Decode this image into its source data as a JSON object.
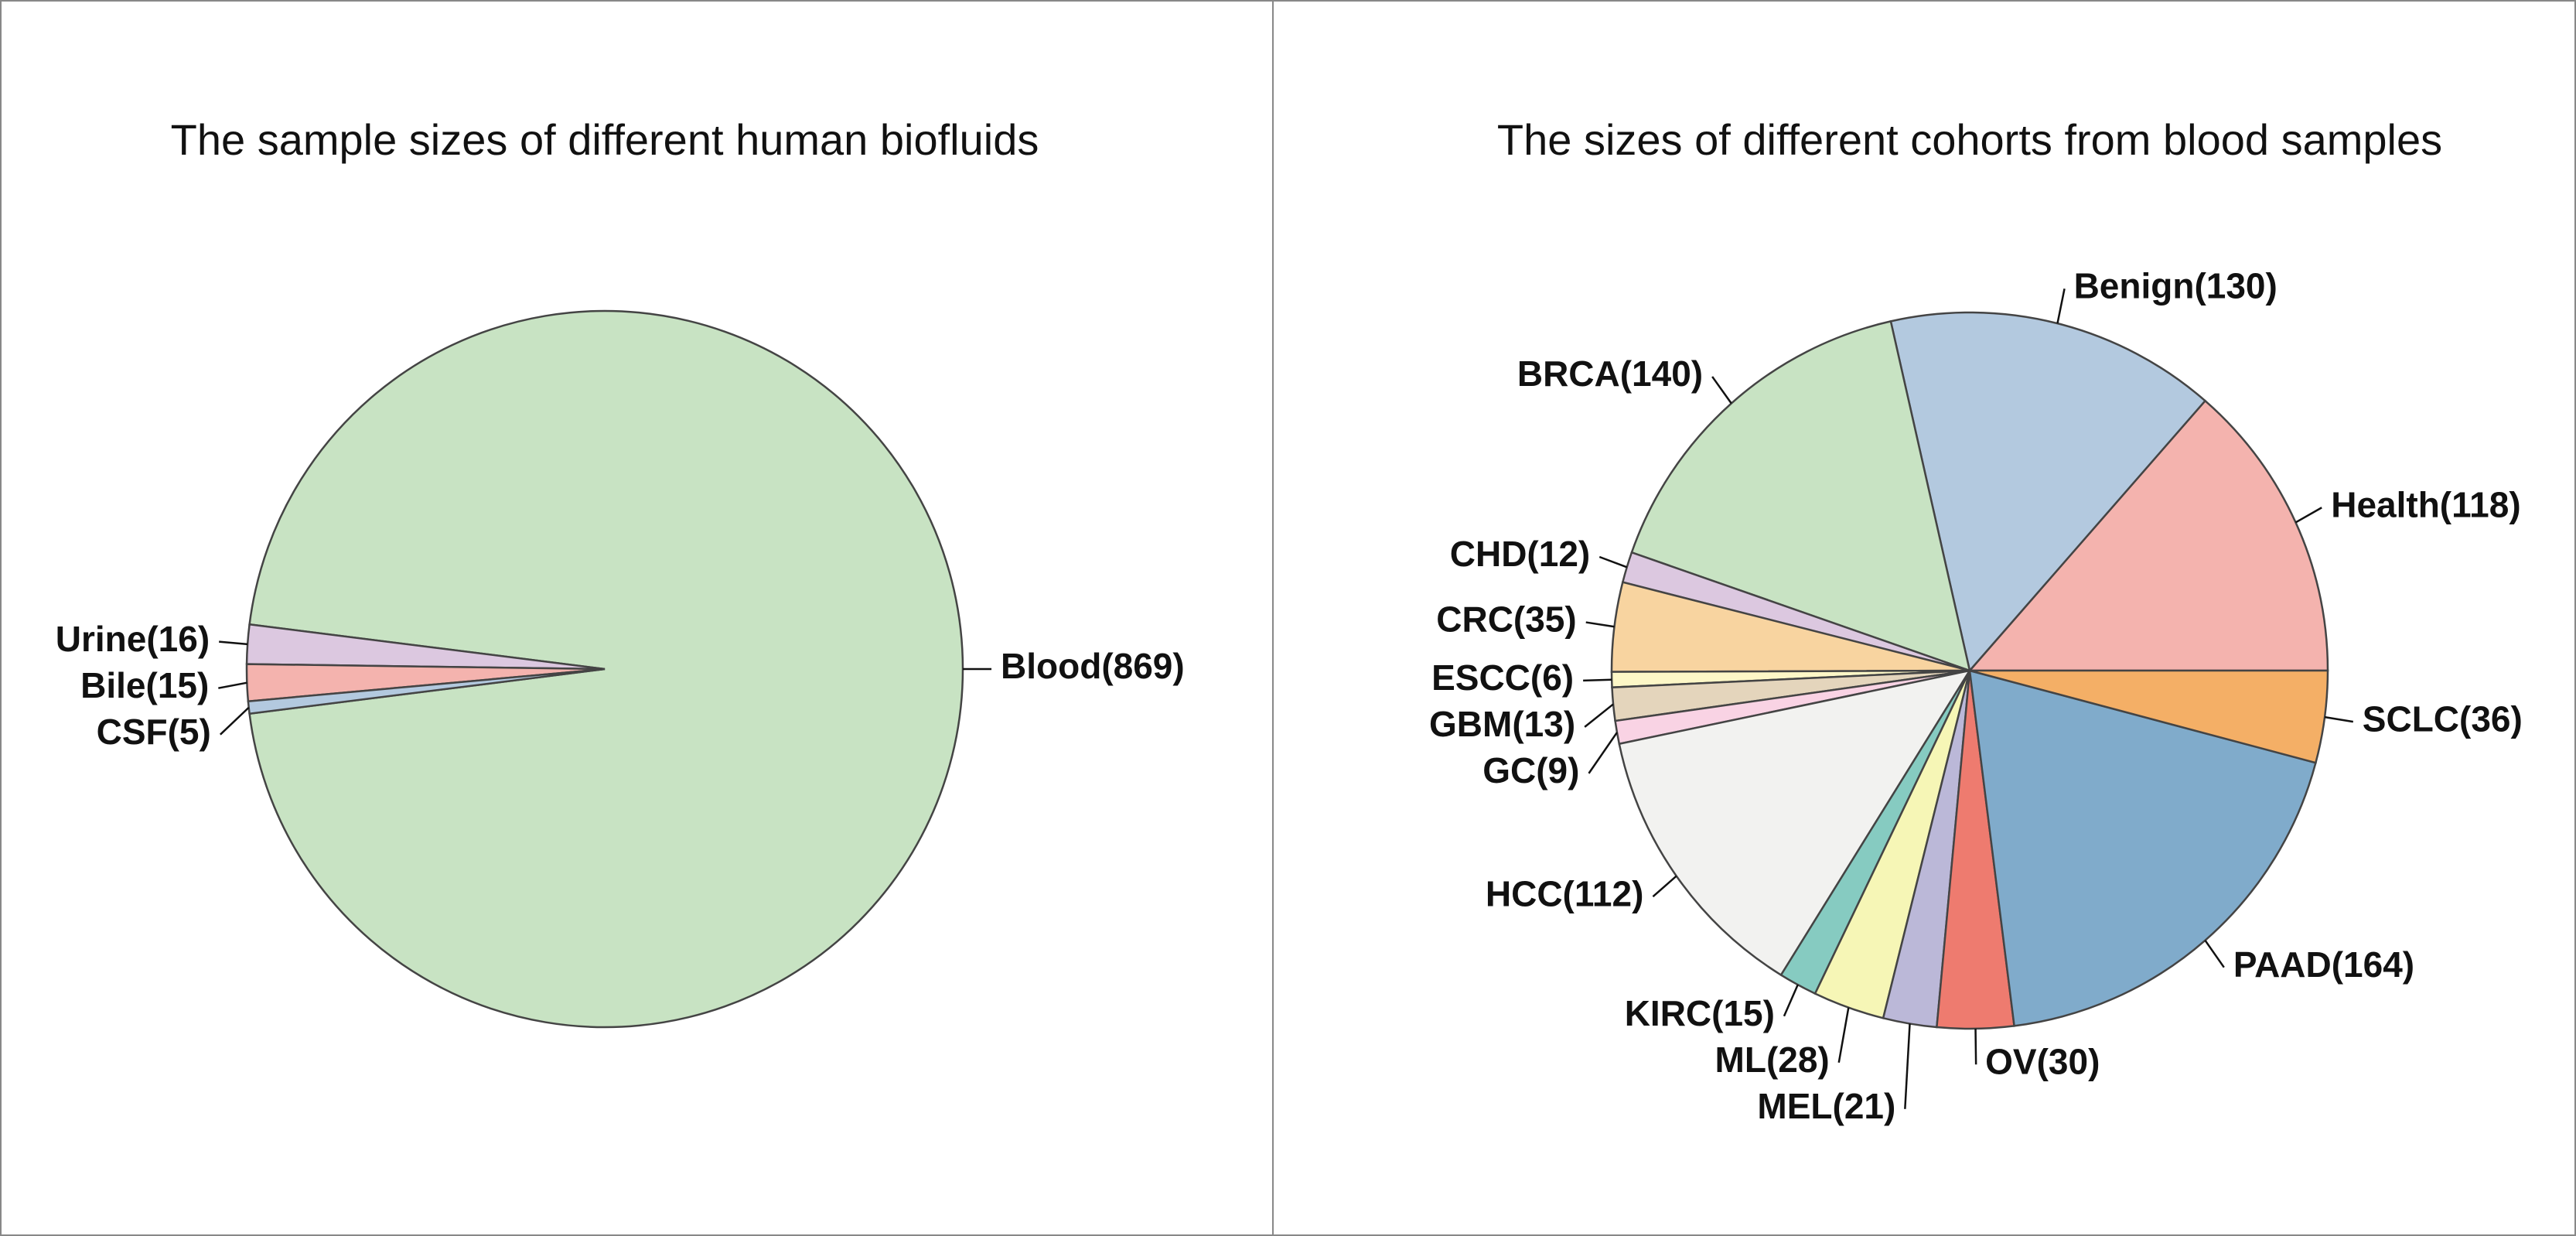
{
  "chart_data": [
    {
      "type": "pie",
      "title": "The sample sizes of different human biofluids",
      "values": [
        869,
        16,
        15,
        5
      ],
      "value_labels": [
        "Blood(869)",
        "Urine(16)",
        "Bile(15)",
        "CSF(5)"
      ],
      "colors": [
        "#c8e3c3",
        "#dcc8e0",
        "#f4b3ae",
        "#b3c9df"
      ]
    },
    {
      "type": "pie",
      "title": "The sizes of different cohorts from blood samples",
      "values": [
        118,
        130,
        140,
        12,
        35,
        6,
        13,
        9,
        112,
        15,
        28,
        21,
        30,
        164,
        36
      ],
      "value_labels": [
        "Health(118)",
        "Benign(130)",
        "BRCA(140)",
        "CHD(12)",
        "CRC(35)",
        "ESCC(6)",
        "GBM(13)",
        "GC(9)",
        "HCC(112)",
        "KIRC(15)",
        "ML(28)",
        "MEL(21)",
        "OV(30)",
        "PAAD(164)",
        "SCLC(36)"
      ],
      "colors": [
        "#f4b3ae",
        "#b3c9df",
        "#c8e3c3",
        "#dcc8e0",
        "#f8d4a0",
        "#fdf7c7",
        "#e4d5bc",
        "#f9d3e4",
        "#f2f2f0",
        "#86cbc1",
        "#f6f6b6",
        "#bbb8d8",
        "#ee7b6f",
        "#80abcb",
        "#f4af66"
      ]
    }
  ]
}
